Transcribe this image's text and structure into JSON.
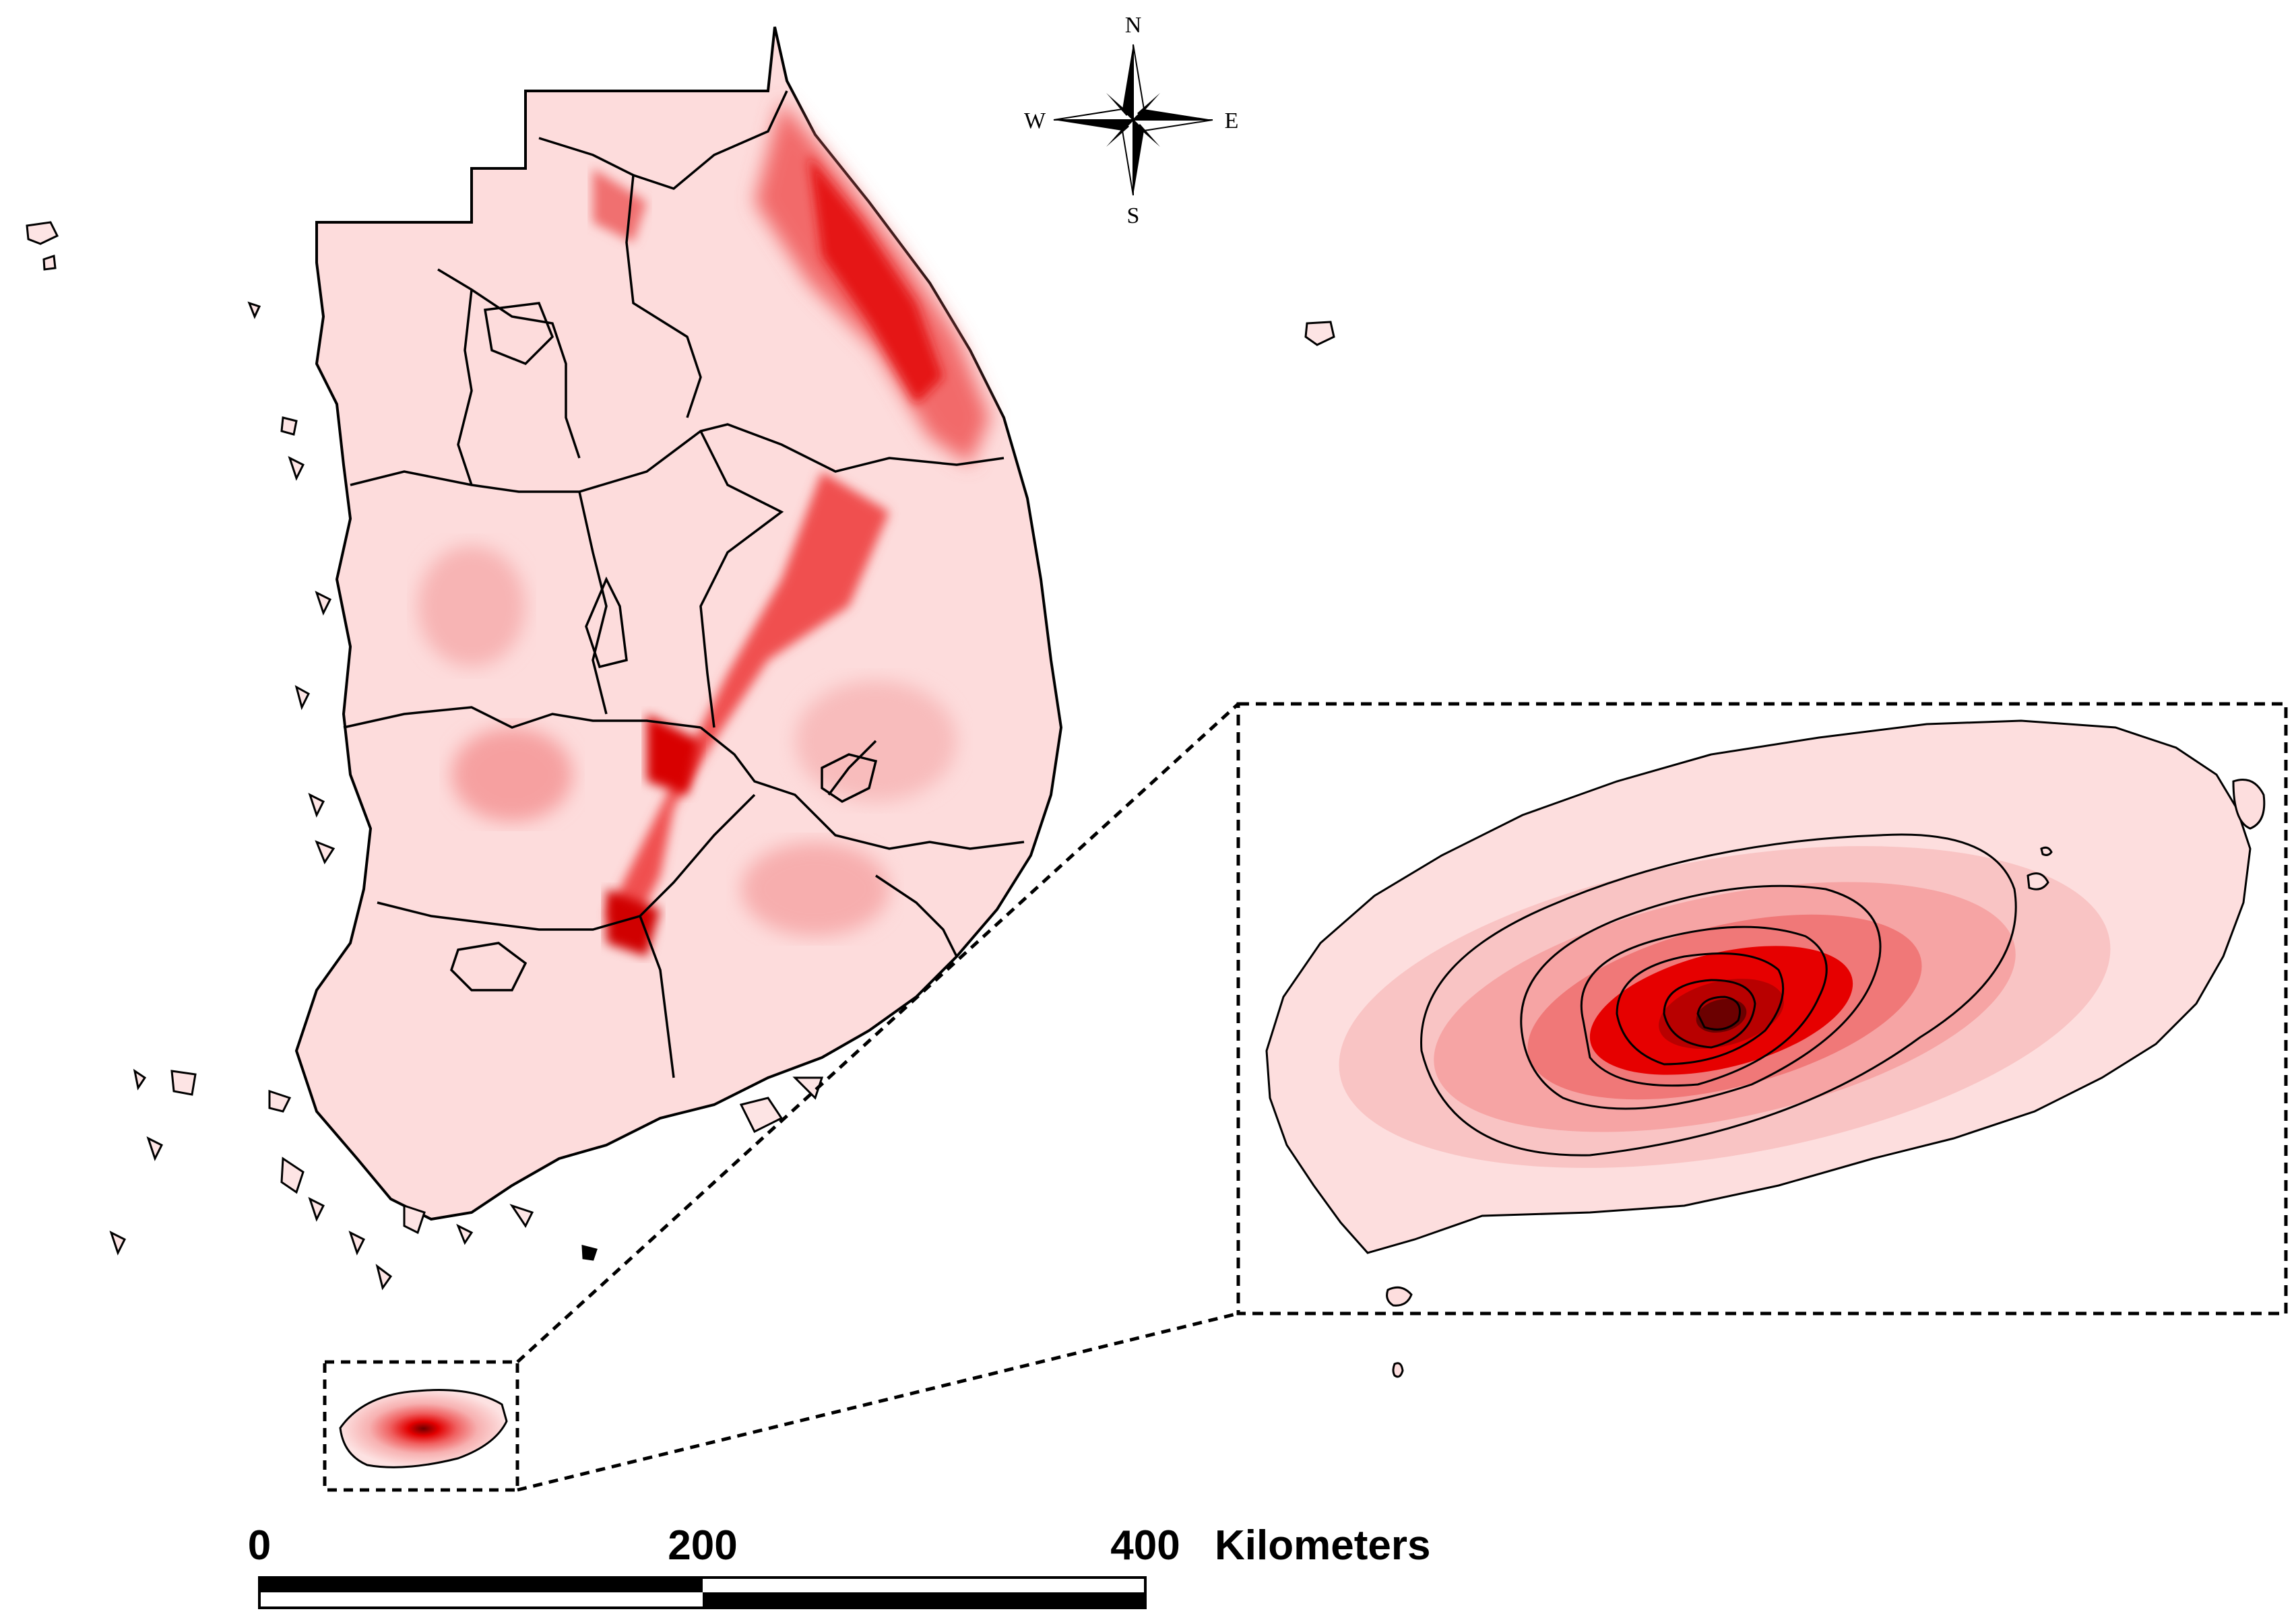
{
  "compass": {
    "north": "N",
    "south": "S",
    "east": "E",
    "west": "W"
  },
  "scale_bar": {
    "ticks": [
      "0",
      "200",
      "400"
    ],
    "unit": "Kilometers"
  },
  "colors": {
    "land_low": "#fde0e0",
    "land_mid": "#f7a8a8",
    "high": "#e81010",
    "peak": "#7a0000",
    "boundary": "#000000"
  },
  "icons": [
    "compass-rose-icon"
  ]
}
